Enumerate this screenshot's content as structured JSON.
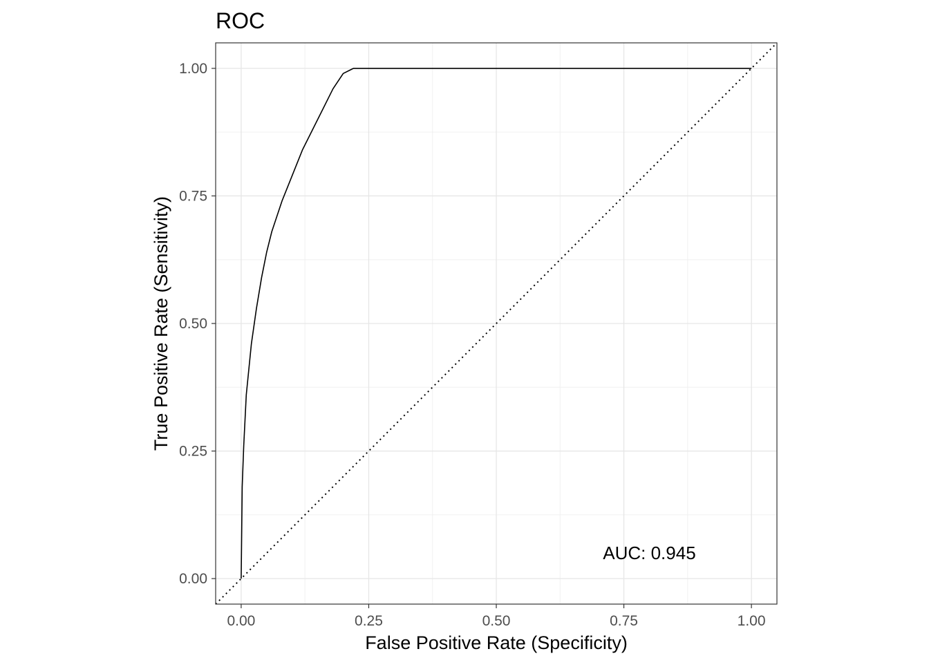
{
  "chart_data": {
    "type": "line",
    "title": "ROC",
    "xlabel": "False Positive Rate (Specificity)",
    "ylabel": "True Positive Rate (Sensitivity)",
    "xlim": [
      -0.05,
      1.05
    ],
    "ylim": [
      -0.05,
      1.05
    ],
    "x_ticks": [
      0,
      0.25,
      0.5,
      0.75,
      1.0
    ],
    "x_tick_labels": [
      "0.00",
      "0.25",
      "0.50",
      "0.75",
      "1.00"
    ],
    "y_ticks": [
      0,
      0.25,
      0.5,
      0.75,
      1.0
    ],
    "y_tick_labels": [
      "0.00",
      "0.25",
      "0.50",
      "0.75",
      "1.00"
    ],
    "grid": true,
    "annotation": {
      "text": "AUC: 0.945",
      "x": 0.8,
      "y": 0.05
    },
    "series": [
      {
        "style": "solid",
        "color": "#000000",
        "x": [
          0,
          0.002,
          0.005,
          0.01,
          0.02,
          0.03,
          0.04,
          0.05,
          0.06,
          0.08,
          0.1,
          0.12,
          0.14,
          0.16,
          0.18,
          0.2,
          0.22,
          0.25,
          0.5,
          0.75,
          1.0
        ],
        "y": [
          0,
          0.18,
          0.26,
          0.36,
          0.46,
          0.53,
          0.59,
          0.64,
          0.68,
          0.74,
          0.79,
          0.84,
          0.88,
          0.92,
          0.96,
          0.99,
          1.0,
          1.0,
          1.0,
          1.0,
          1.0
        ]
      },
      {
        "style": "dotted",
        "color": "#000000",
        "x": [
          -0.05,
          1.05
        ],
        "y": [
          -0.05,
          1.05
        ]
      }
    ]
  }
}
